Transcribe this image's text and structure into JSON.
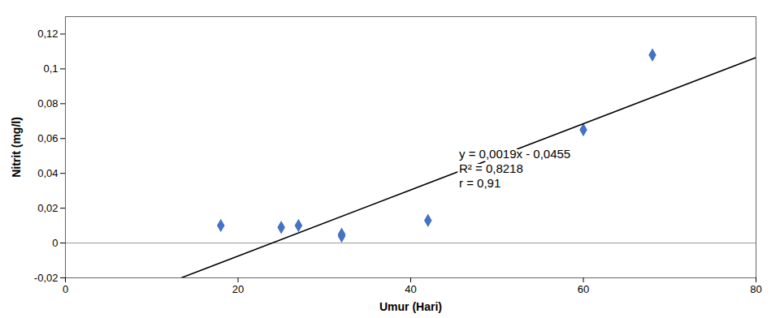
{
  "chart_data": {
    "type": "scatter",
    "xlabel": "Umur (Hari)",
    "ylabel": "Nitrit (mg/l)",
    "xlim": [
      0,
      80
    ],
    "ylim": [
      -0.02,
      0.13
    ],
    "xticks": [
      0,
      20,
      40,
      60,
      80
    ],
    "yticks": [
      {
        "value": -0.02,
        "label": "-0,02"
      },
      0,
      {
        "value": 0.02,
        "label": "0,02"
      },
      {
        "value": 0.04,
        "label": "0,04"
      },
      {
        "value": 0.06,
        "label": "0,06"
      },
      {
        "value": 0.08,
        "label": "0,08"
      },
      {
        "value": 0.1,
        "label": "0,1"
      },
      {
        "value": 0.12,
        "label": "0,12"
      }
    ],
    "grid": false,
    "series": [
      {
        "type": "scatter",
        "color": "#4472C4",
        "marker": "diamond",
        "x": [
          18,
          25,
          27,
          32,
          32,
          42,
          60,
          68
        ],
        "values": [
          0.01,
          0.009,
          0.01,
          0.005,
          0.004,
          0.013,
          0.065,
          0.108
        ]
      },
      {
        "type": "line",
        "color": "#000000",
        "line_style": "solid",
        "x": [
          13.421052631578947,
          80
        ],
        "values": [
          -0.02,
          0.1065
        ]
      }
    ],
    "reference_line": {
      "y": 0,
      "color": "#999999"
    },
    "annotations": [
      "y = 0,0019x - 0,0455",
      "R² = 0,8218",
      "r = 0,91"
    ]
  }
}
